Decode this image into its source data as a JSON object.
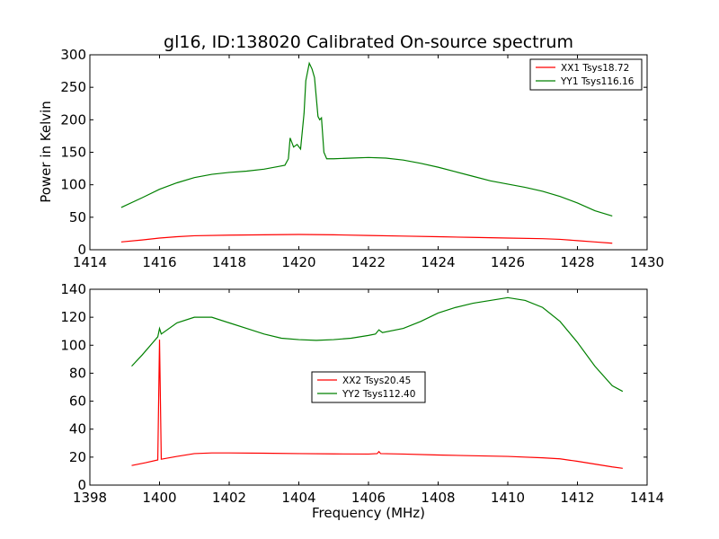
{
  "chart_data": [
    {
      "type": "line",
      "title": "gl16, ID:138020 Calibrated On-source spectrum",
      "xlabel": "",
      "ylabel": "Power in Kelvin",
      "xlim": [
        1414,
        1430
      ],
      "ylim": [
        0,
        300
      ],
      "xticks": [
        1414,
        1416,
        1418,
        1420,
        1422,
        1424,
        1426,
        1428,
        1430
      ],
      "yticks": [
        0,
        50,
        100,
        150,
        200,
        250,
        300
      ],
      "legend": "top-right",
      "series": [
        {
          "name": "XX1 Tsys18.72",
          "color": "#ff0000",
          "points": [
            [
              1414.9,
              12
            ],
            [
              1415.5,
              15
            ],
            [
              1416.0,
              18
            ],
            [
              1416.5,
              20
            ],
            [
              1417.0,
              21.5
            ],
            [
              1418.0,
              22.5
            ],
            [
              1419.0,
              23
            ],
            [
              1420.0,
              23.5
            ],
            [
              1421.0,
              23
            ],
            [
              1422.0,
              22
            ],
            [
              1423.0,
              21
            ],
            [
              1424.0,
              20
            ],
            [
              1425.0,
              19
            ],
            [
              1426.0,
              18
            ],
            [
              1427.0,
              17
            ],
            [
              1427.5,
              16
            ],
            [
              1428.0,
              14
            ],
            [
              1428.5,
              12
            ],
            [
              1429.0,
              10
            ]
          ]
        },
        {
          "name": "YY1 Tsys116.16",
          "color": "#008000",
          "points": [
            [
              1414.9,
              65
            ],
            [
              1415.5,
              80
            ],
            [
              1416.0,
              93
            ],
            [
              1416.5,
              103
            ],
            [
              1417.0,
              111
            ],
            [
              1417.5,
              116
            ],
            [
              1418.0,
              119
            ],
            [
              1418.5,
              121
            ],
            [
              1419.0,
              124
            ],
            [
              1419.4,
              128
            ],
            [
              1419.6,
              130
            ],
            [
              1419.7,
              140
            ],
            [
              1419.75,
              172
            ],
            [
              1419.85,
              158
            ],
            [
              1419.95,
              162
            ],
            [
              1420.05,
              155
            ],
            [
              1420.15,
              210
            ],
            [
              1420.2,
              260
            ],
            [
              1420.3,
              287
            ],
            [
              1420.38,
              278
            ],
            [
              1420.45,
              265
            ],
            [
              1420.55,
              205
            ],
            [
              1420.6,
              200
            ],
            [
              1420.65,
              203
            ],
            [
              1420.72,
              150
            ],
            [
              1420.8,
              140
            ],
            [
              1421.0,
              140
            ],
            [
              1421.5,
              141
            ],
            [
              1422.0,
              142
            ],
            [
              1422.5,
              141
            ],
            [
              1423.0,
              138
            ],
            [
              1423.5,
              133
            ],
            [
              1424.0,
              127
            ],
            [
              1424.5,
              120
            ],
            [
              1425.0,
              113
            ],
            [
              1425.5,
              106
            ],
            [
              1426.0,
              101
            ],
            [
              1426.5,
              96
            ],
            [
              1427.0,
              90
            ],
            [
              1427.5,
              82
            ],
            [
              1428.0,
              72
            ],
            [
              1428.5,
              60
            ],
            [
              1429.0,
              52
            ]
          ]
        }
      ]
    },
    {
      "type": "line",
      "title": "",
      "xlabel": "Frequency (MHz)",
      "ylabel": "",
      "xlim": [
        1398,
        1414
      ],
      "ylim": [
        0,
        140
      ],
      "xticks": [
        1398,
        1400,
        1402,
        1404,
        1406,
        1408,
        1410,
        1412,
        1414
      ],
      "yticks": [
        0,
        20,
        40,
        60,
        80,
        100,
        120,
        140
      ],
      "legend": "center",
      "series": [
        {
          "name": "XX2 Tsys20.45",
          "color": "#ff0000",
          "points": [
            [
              1399.2,
              14
            ],
            [
              1399.6,
              16
            ],
            [
              1399.95,
              18
            ],
            [
              1400.0,
              104
            ],
            [
              1400.05,
              18.5
            ],
            [
              1400.5,
              20.5
            ],
            [
              1401.0,
              22.5
            ],
            [
              1401.5,
              23
            ],
            [
              1402.0,
              23
            ],
            [
              1403.0,
              22.8
            ],
            [
              1404.0,
              22.5
            ],
            [
              1405.0,
              22.3
            ],
            [
              1406.0,
              22.2
            ],
            [
              1406.25,
              22.5
            ],
            [
              1406.3,
              24
            ],
            [
              1406.35,
              22.5
            ],
            [
              1407.0,
              22.2
            ],
            [
              1408.0,
              21.5
            ],
            [
              1409.0,
              21
            ],
            [
              1410.0,
              20.5
            ],
            [
              1411.0,
              19.5
            ],
            [
              1411.5,
              18.8
            ],
            [
              1412.0,
              17
            ],
            [
              1412.5,
              15
            ],
            [
              1413.0,
              13
            ],
            [
              1413.3,
              12
            ]
          ]
        },
        {
          "name": "YY2 Tsys112.40",
          "color": "#008000",
          "points": [
            [
              1399.2,
              85
            ],
            [
              1399.5,
              93
            ],
            [
              1399.95,
              106
            ],
            [
              1400.0,
              112
            ],
            [
              1400.05,
              108
            ],
            [
              1400.5,
              116
            ],
            [
              1401.0,
              120
            ],
            [
              1401.5,
              120
            ],
            [
              1402.0,
              116
            ],
            [
              1402.5,
              112
            ],
            [
              1403.0,
              108
            ],
            [
              1403.5,
              105
            ],
            [
              1404.0,
              104
            ],
            [
              1404.5,
              103.5
            ],
            [
              1405.0,
              104
            ],
            [
              1405.5,
              105
            ],
            [
              1406.0,
              107
            ],
            [
              1406.2,
              108
            ],
            [
              1406.3,
              111
            ],
            [
              1406.4,
              109
            ],
            [
              1407.0,
              112
            ],
            [
              1407.5,
              117
            ],
            [
              1408.0,
              123
            ],
            [
              1408.5,
              127
            ],
            [
              1409.0,
              130
            ],
            [
              1409.5,
              132
            ],
            [
              1410.0,
              134
            ],
            [
              1410.5,
              132
            ],
            [
              1411.0,
              127
            ],
            [
              1411.5,
              117
            ],
            [
              1412.0,
              102
            ],
            [
              1412.5,
              85
            ],
            [
              1413.0,
              71
            ],
            [
              1413.3,
              67
            ]
          ]
        }
      ]
    }
  ]
}
